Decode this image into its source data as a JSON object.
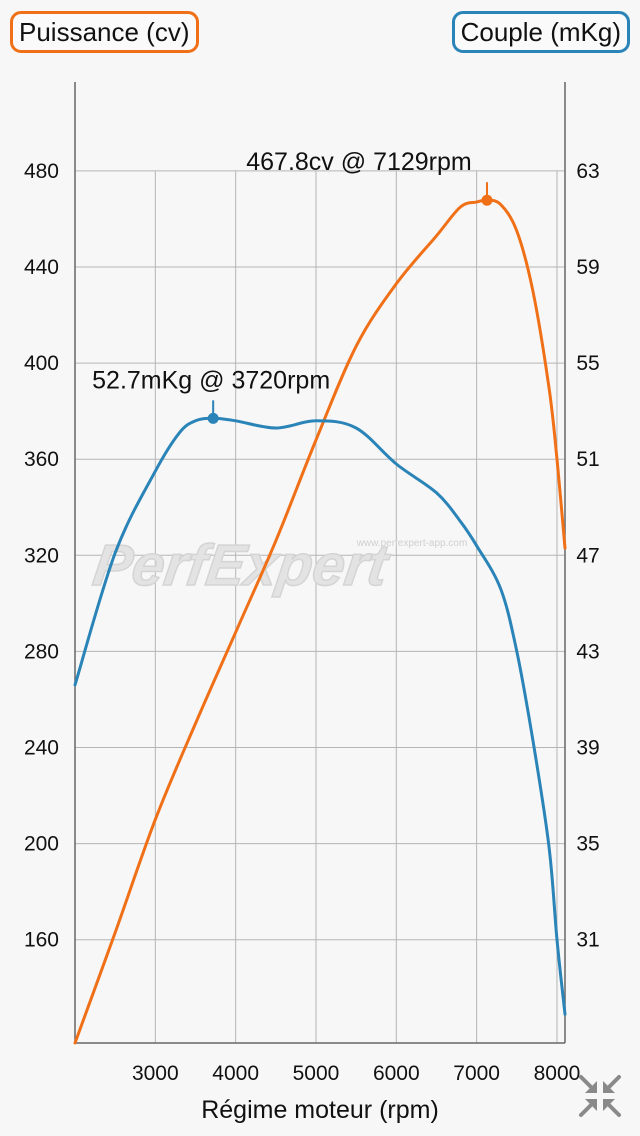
{
  "legend": {
    "left_label": "Puissance (cv)",
    "right_label": "Couple (mKg)"
  },
  "watermark": {
    "logo_text": "PerfExpert",
    "site": "www.perfexpert-app.com"
  },
  "controls": {
    "fullscreen_icon": "collapse-arrows-icon"
  },
  "chart_data": {
    "type": "line",
    "xlabel": "Régime moteur (rpm)",
    "x_ticks": [
      3000,
      4000,
      5000,
      6000,
      7000,
      8000
    ],
    "xlim": [
      2000,
      8100
    ],
    "left_axis": {
      "ticks": [
        160,
        200,
        240,
        280,
        320,
        360,
        400,
        440,
        480
      ],
      "ylim": [
        117,
        517
      ]
    },
    "right_axis": {
      "ticks": [
        31,
        35,
        39,
        43,
        47,
        51,
        55,
        59,
        63
      ],
      "ylim": [
        26.7,
        66.7
      ]
    },
    "grid": true,
    "series": [
      {
        "name": "Puissance (cv)",
        "axis": "left",
        "color": "#f07018",
        "points": [
          [
            2000,
            117
          ],
          [
            2500,
            163
          ],
          [
            3000,
            210
          ],
          [
            3500,
            250
          ],
          [
            4000,
            288
          ],
          [
            4500,
            326
          ],
          [
            5000,
            368
          ],
          [
            5500,
            407
          ],
          [
            6000,
            433
          ],
          [
            6500,
            453
          ],
          [
            6800,
            465
          ],
          [
            7000,
            467
          ],
          [
            7129,
            467.8
          ],
          [
            7300,
            466
          ],
          [
            7500,
            455
          ],
          [
            7700,
            430
          ],
          [
            7900,
            390
          ],
          [
            8000,
            360
          ],
          [
            8100,
            323
          ]
        ]
      },
      {
        "name": "Couple (mKg)",
        "axis": "right",
        "color": "#2a84b8",
        "points": [
          [
            2000,
            41.6
          ],
          [
            2500,
            47.1
          ],
          [
            3000,
            50.5
          ],
          [
            3300,
            52.1
          ],
          [
            3500,
            52.6
          ],
          [
            3720,
            52.7
          ],
          [
            4000,
            52.6
          ],
          [
            4500,
            52.3
          ],
          [
            5000,
            52.6
          ],
          [
            5500,
            52.3
          ],
          [
            6000,
            50.8
          ],
          [
            6500,
            49.6
          ],
          [
            6800,
            48.4
          ],
          [
            7000,
            47.4
          ],
          [
            7300,
            45.6
          ],
          [
            7500,
            43.0
          ],
          [
            7700,
            39.3
          ],
          [
            7900,
            34.9
          ],
          [
            8000,
            31.0
          ],
          [
            8100,
            27.9
          ]
        ]
      }
    ],
    "annotations": [
      {
        "series": "Puissance (cv)",
        "x": 7129,
        "y": 467.8,
        "label": "467.8cv @ 7129rpm"
      },
      {
        "series": "Couple (mKg)",
        "x": 3720,
        "y": 52.7,
        "label": "52.7mKg @ 3720rpm"
      }
    ]
  }
}
